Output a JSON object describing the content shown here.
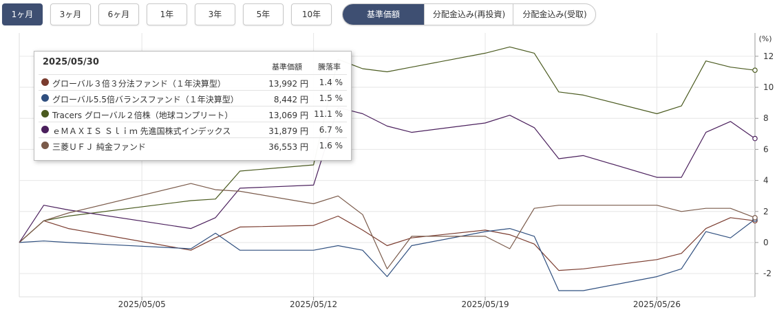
{
  "periods": [
    {
      "label": "1ヶ月",
      "active": true
    },
    {
      "label": "3ヶ月",
      "active": false
    },
    {
      "label": "6ヶ月",
      "active": false
    },
    {
      "label": "1年",
      "active": false
    },
    {
      "label": "3年",
      "active": false
    },
    {
      "label": "5年",
      "active": false
    },
    {
      "label": "10年",
      "active": false
    }
  ],
  "modes": [
    {
      "label": "基準価額",
      "active": true
    },
    {
      "label": "分配金込み(再投資)",
      "active": false
    },
    {
      "label": "分配金込み(受取)",
      "active": false
    }
  ],
  "tooltip": {
    "date": "2025/05/30",
    "price_header": "基準価額",
    "pct_header": "騰落率",
    "rows": [
      {
        "name": "グローバル３倍３分法ファンド（１年決算型）",
        "price": "13,992 円",
        "pct": "1.4 %",
        "color": "#7a3b2e"
      },
      {
        "name": "グローバル5.5倍バランスファンド（１年決算型）",
        "price": "8,442 円",
        "pct": "1.5 %",
        "color": "#2f4f7f"
      },
      {
        "name": "Tracers グローバル２倍株（地球コンプリート）",
        "price": "13,069 円",
        "pct": "11.1 %",
        "color": "#4a5a1f"
      },
      {
        "name": "ｅＭＡＸＩＳ Ｓｌｉｍ 先進国株式インデックス",
        "price": "31,879 円",
        "pct": "6.7 %",
        "color": "#4a1f5c"
      },
      {
        "name": "三菱ＵＦＪ 純金ファンド",
        "price": "36,553 円",
        "pct": "1.6 %",
        "color": "#7a5a4a"
      }
    ]
  },
  "chart_data": {
    "type": "line",
    "y_unit": "(%)",
    "ylim": [
      -3.5,
      13.5
    ],
    "yticks": [
      "12",
      "10",
      "8",
      "6",
      "4",
      "2",
      "0",
      "-2"
    ],
    "ytick_values": [
      12,
      10,
      8,
      6,
      4,
      2,
      0,
      -2
    ],
    "x": [
      "2025-04-30",
      "2025-05-01",
      "2025-05-02",
      "2025-05-07",
      "2025-05-08",
      "2025-05-09",
      "2025-05-12",
      "2025-05-13",
      "2025-05-14",
      "2025-05-15",
      "2025-05-16",
      "2025-05-19",
      "2025-05-20",
      "2025-05-21",
      "2025-05-22",
      "2025-05-23",
      "2025-05-26",
      "2025-05-27",
      "2025-05-28",
      "2025-05-29",
      "2025-05-30"
    ],
    "x_ticks": [
      {
        "label": "2025/05/05",
        "x": "2025-05-05"
      },
      {
        "label": "2025/05/12",
        "x": "2025-05-12"
      },
      {
        "label": "2025/05/19",
        "x": "2025-05-19"
      },
      {
        "label": "2025/05/26",
        "x": "2025-05-26"
      }
    ],
    "grid": true,
    "series": [
      {
        "name": "グローバル３倍３分法ファンド（１年決算型）",
        "color": "#7a3b2e",
        "values": [
          0.0,
          1.4,
          0.9,
          -0.5,
          0.3,
          1.0,
          1.1,
          1.7,
          0.8,
          -0.2,
          0.3,
          0.8,
          0.5,
          -0.1,
          -1.8,
          -1.7,
          -1.1,
          -0.7,
          0.9,
          1.6,
          1.4
        ]
      },
      {
        "name": "グローバル5.5倍バランスファンド（１年決算型）",
        "color": "#2f4f7f",
        "values": [
          0.0,
          0.1,
          0.0,
          -0.4,
          0.6,
          -0.5,
          -0.5,
          -0.2,
          -0.5,
          -2.2,
          -0.2,
          0.7,
          0.9,
          0.4,
          -3.1,
          -3.1,
          -2.2,
          -1.7,
          0.7,
          0.3,
          1.5
        ]
      },
      {
        "name": "Tracers グローバル２倍株（地球コンプリート）",
        "color": "#4a5a1f",
        "values": [
          0.0,
          1.4,
          1.7,
          2.7,
          2.8,
          4.6,
          5.0,
          11.8,
          11.2,
          11.0,
          11.3,
          12.2,
          12.6,
          12.2,
          9.7,
          9.5,
          8.3,
          8.8,
          11.7,
          11.3,
          11.1
        ]
      },
      {
        "name": "ｅＭＡＸＩＳ Ｓｌｉｍ 先進国株式インデックス",
        "color": "#4a1f5c",
        "values": [
          0.0,
          2.4,
          2.1,
          0.9,
          1.6,
          3.5,
          3.7,
          8.7,
          8.3,
          7.5,
          7.1,
          7.7,
          8.2,
          7.4,
          5.4,
          5.6,
          4.2,
          4.2,
          7.1,
          7.8,
          6.7
        ]
      },
      {
        "name": "三菱ＵＦＪ 純金ファンド",
        "color": "#7a5a4a",
        "values": [
          0.0,
          1.4,
          1.9,
          3.8,
          3.4,
          3.3,
          2.5,
          3.0,
          1.8,
          -1.7,
          0.4,
          0.4,
          -0.4,
          2.2,
          2.4,
          2.4,
          2.4,
          2.0,
          2.2,
          2.2,
          1.6
        ]
      }
    ]
  }
}
